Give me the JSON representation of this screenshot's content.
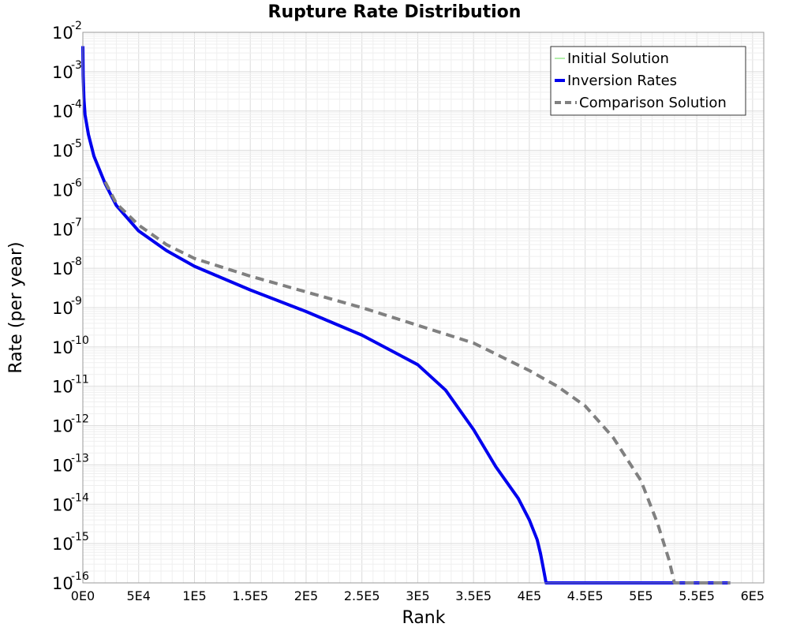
{
  "chart_data": {
    "type": "line",
    "title": "Rupture Rate Distribution",
    "xlabel": "Rank",
    "ylabel": "Rate (per year)",
    "xlim": [
      0,
      610000
    ],
    "ylim_exponent": [
      -16,
      -2
    ],
    "y_scale": "log",
    "grid": true,
    "legend_position": "top-right",
    "x_ticks": [
      {
        "value": 0,
        "label": "0E0"
      },
      {
        "value": 50000,
        "label": "5E4"
      },
      {
        "value": 100000,
        "label": "1E5"
      },
      {
        "value": 150000,
        "label": "1.5E5"
      },
      {
        "value": 200000,
        "label": "2E5"
      },
      {
        "value": 250000,
        "label": "2.5E5"
      },
      {
        "value": 300000,
        "label": "3E5"
      },
      {
        "value": 350000,
        "label": "3.5E5"
      },
      {
        "value": 400000,
        "label": "4E5"
      },
      {
        "value": 450000,
        "label": "4.5E5"
      },
      {
        "value": 500000,
        "label": "5E5"
      },
      {
        "value": 550000,
        "label": "5.5E5"
      },
      {
        "value": 600000,
        "label": "6E5"
      }
    ],
    "y_ticks": [
      {
        "exp": -2,
        "base": "10",
        "sup": "-2"
      },
      {
        "exp": -3,
        "base": "10",
        "sup": "-3"
      },
      {
        "exp": -4,
        "base": "10",
        "sup": "-4"
      },
      {
        "exp": -5,
        "base": "10",
        "sup": "-5"
      },
      {
        "exp": -6,
        "base": "10",
        "sup": "-6"
      },
      {
        "exp": -7,
        "base": "10",
        "sup": "-7"
      },
      {
        "exp": -8,
        "base": "10",
        "sup": "-8"
      },
      {
        "exp": -9,
        "base": "10",
        "sup": "-9"
      },
      {
        "exp": -10,
        "base": "10",
        "sup": "-10"
      },
      {
        "exp": -11,
        "base": "10",
        "sup": "-11"
      },
      {
        "exp": -12,
        "base": "10",
        "sup": "-12"
      },
      {
        "exp": -13,
        "base": "10",
        "sup": "-13"
      },
      {
        "exp": -14,
        "base": "10",
        "sup": "-14"
      },
      {
        "exp": -15,
        "base": "10",
        "sup": "-15"
      },
      {
        "exp": -16,
        "base": "10",
        "sup": "-16"
      }
    ],
    "series": [
      {
        "name": "Initial Solution",
        "color": "#66dd55",
        "style": "solid",
        "x": [
          0,
          580000
        ],
        "y_exp": [
          -16,
          -16
        ]
      },
      {
        "name": "Inversion Rates",
        "color": "#0000ee",
        "style": "solid-thick",
        "x": [
          0,
          300,
          1000,
          2000,
          5000,
          10000,
          20000,
          30000,
          50000,
          75000,
          100000,
          150000,
          200000,
          250000,
          300000,
          325000,
          350000,
          370000,
          390000,
          400000,
          407000,
          410000,
          412000,
          415000,
          580000
        ],
        "y_exp": [
          -2.35,
          -3.1,
          -3.7,
          -4.1,
          -4.6,
          -5.15,
          -5.85,
          -6.4,
          -7.05,
          -7.55,
          -7.95,
          -8.55,
          -9.1,
          -9.7,
          -10.45,
          -11.1,
          -12.1,
          -13.05,
          -13.85,
          -14.4,
          -14.9,
          -15.25,
          -15.55,
          -16,
          -16
        ]
      },
      {
        "name": "Comparison Solution",
        "color": "#808080",
        "style": "dashed",
        "x": [
          20000,
          30000,
          50000,
          75000,
          100000,
          150000,
          200000,
          250000,
          300000,
          350000,
          400000,
          425000,
          450000,
          475000,
          500000,
          515000,
          525000,
          530000,
          580000
        ],
        "y_exp": [
          -5.8,
          -6.35,
          -6.9,
          -7.4,
          -7.75,
          -8.2,
          -8.6,
          -9.0,
          -9.45,
          -9.9,
          -10.6,
          -11.0,
          -11.5,
          -12.3,
          -13.4,
          -14.5,
          -15.4,
          -16,
          -16
        ]
      }
    ]
  }
}
